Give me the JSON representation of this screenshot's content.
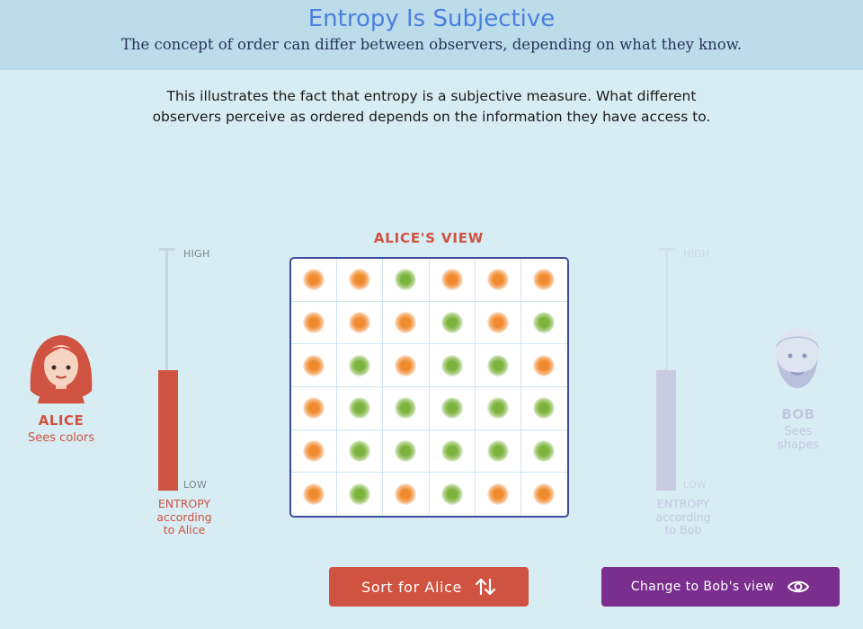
{
  "header": {
    "title": "Entropy Is Subjective",
    "subtitle": "The concept of order can differ between observers, depending on what they know."
  },
  "intro": {
    "line1": "This illustrates the fact that entropy is a subjective measure. What different",
    "line2": "observers perceive as ordered depends on the information they have access to."
  },
  "alice": {
    "name": "ALICE",
    "description": "Sees colors",
    "accent_color": "#cf5340",
    "meter": {
      "high_label": "HIGH",
      "low_label": "LOW",
      "caption_line1": "ENTROPY",
      "caption_line2": "according",
      "caption_line3": "to Alice",
      "level": 0.5
    }
  },
  "bob": {
    "name": "BOB",
    "description_line1": "Sees",
    "description_line2": "shapes",
    "accent_color": "#c8cbe2",
    "meter": {
      "high_label": "HIGH",
      "low_label": "LOW",
      "caption_line1": "ENTROPY",
      "caption_line2": "according",
      "caption_line3": "to Bob",
      "level": 0.5
    }
  },
  "grid": {
    "title": "ALICE'S VIEW",
    "colors": {
      "o": "#f08a2e",
      "g": "#7cb33c"
    },
    "rows": [
      [
        "o",
        "o",
        "g",
        "o",
        "o",
        "o"
      ],
      [
        "o",
        "o",
        "o",
        "g",
        "o",
        "g"
      ],
      [
        "o",
        "g",
        "o",
        "g",
        "g",
        "o"
      ],
      [
        "o",
        "g",
        "g",
        "g",
        "g",
        "g"
      ],
      [
        "o",
        "g",
        "g",
        "g",
        "g",
        "g"
      ],
      [
        "o",
        "g",
        "o",
        "g",
        "o",
        "o"
      ]
    ]
  },
  "buttons": {
    "sort_label": "Sort for Alice",
    "sort_icon": "sort-arrows-icon",
    "view_label": "Change to Bob's view",
    "view_icon": "eye-icon",
    "sort_color": "#cf5340",
    "view_color": "#7a2e8d"
  }
}
